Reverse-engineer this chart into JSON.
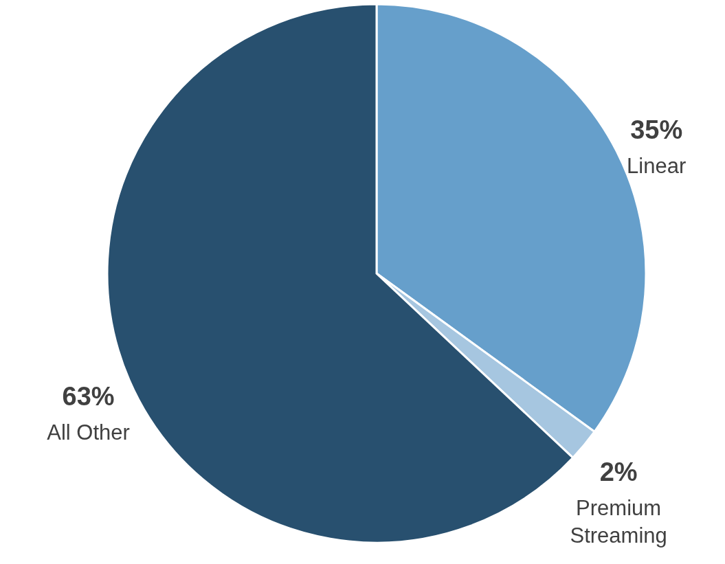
{
  "chart_data": {
    "type": "pie",
    "categories": [
      "Linear",
      "Premium Streaming",
      "All Other"
    ],
    "values": [
      35,
      2,
      63
    ],
    "value_labels": [
      "35%",
      "2%",
      "63%"
    ],
    "colors": [
      "#669fcb",
      "#a6c6e0",
      "#28506f"
    ]
  }
}
